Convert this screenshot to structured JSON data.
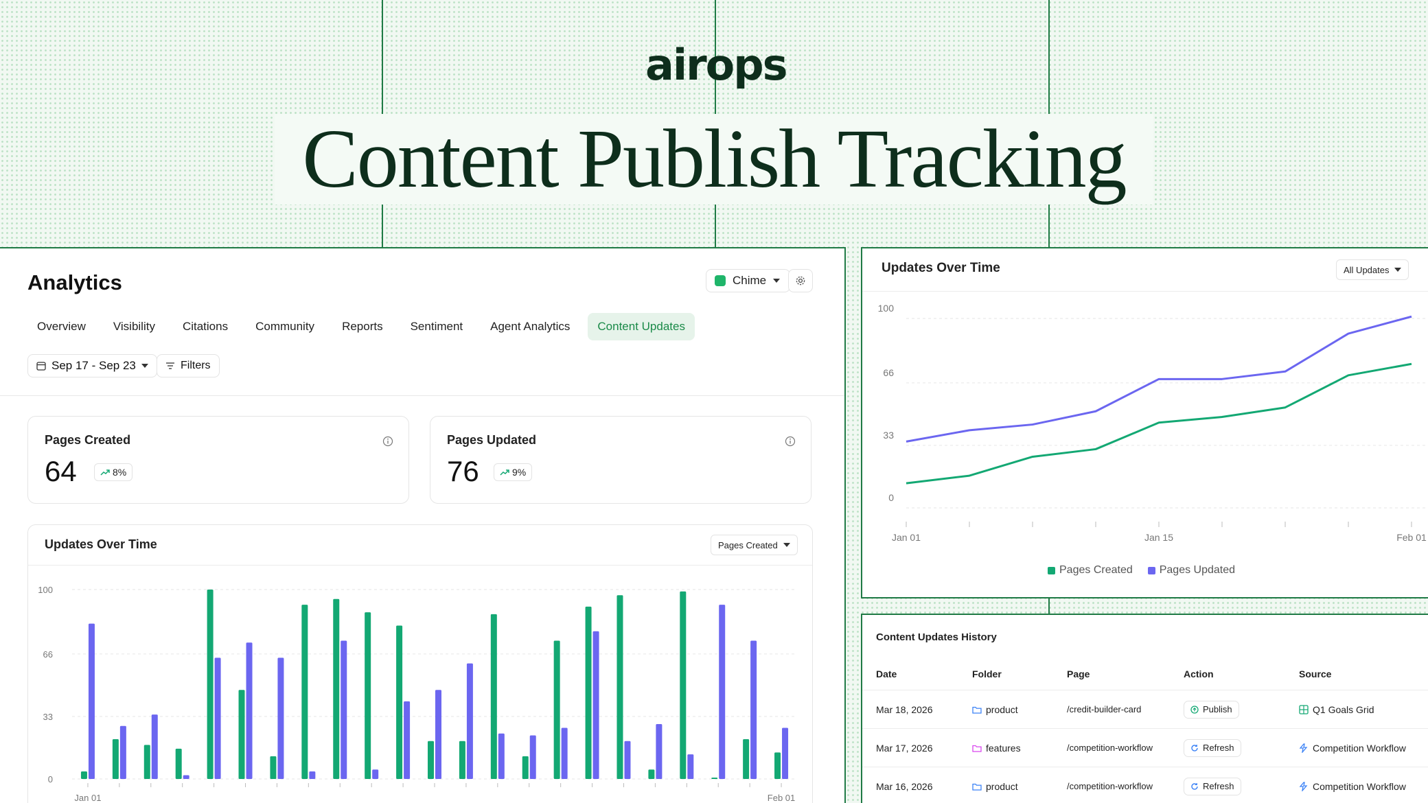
{
  "brand": {
    "logo_text": "airops",
    "hero_title": "Content Publish Tracking"
  },
  "analytics": {
    "title": "Analytics",
    "brand_dropdown": "Chime",
    "tabs": [
      "Overview",
      "Visibility",
      "Citations",
      "Community",
      "Reports",
      "Sentiment",
      "Agent Analytics",
      "Content Updates"
    ],
    "active_tab": "Content Updates",
    "date_range": "Sep 17 - Sep 23",
    "filters_label": "Filters"
  },
  "stats": [
    {
      "label": "Pages Created",
      "value": "64",
      "change": "8%"
    },
    {
      "label": "Pages Updated",
      "value": "76",
      "change": "9%"
    }
  ],
  "bar_chart_card": {
    "title": "Updates Over Time",
    "dropdown": "Pages Created"
  },
  "line_chart_card": {
    "title": "Updates Over Time",
    "dropdown": "All Updates"
  },
  "colors": {
    "created": "#13a873",
    "updated": "#6b66f0",
    "accent": "#1f7a45"
  },
  "chart_data": [
    {
      "type": "bar",
      "title": "Updates Over Time",
      "x_tick_labels": [
        "Jan 01",
        "Feb 01"
      ],
      "y_ticks": [
        0,
        33,
        66,
        100
      ],
      "ylim": [
        0,
        100
      ],
      "grid": true,
      "series": [
        {
          "name": "Pages Created",
          "values": [
            4,
            21,
            18,
            16,
            100,
            47,
            12,
            92,
            95,
            88,
            81,
            20,
            20,
            87,
            12,
            73,
            91,
            97,
            5,
            99,
            0,
            21,
            14
          ]
        },
        {
          "name": "Pages Updated",
          "values": [
            82,
            28,
            34,
            2,
            64,
            72,
            64,
            4,
            73,
            5,
            41,
            47,
            61,
            24,
            23,
            27,
            78,
            20,
            29,
            13,
            92,
            73,
            27
          ]
        }
      ]
    },
    {
      "type": "line",
      "title": "Updates Over Time",
      "x": [
        "Jan 01",
        "",
        "",
        "",
        "Jan 15",
        "",
        "",
        "",
        "Feb 01"
      ],
      "x_tick_labels": [
        "Jan 01",
        "Jan 15",
        "Feb 01"
      ],
      "y_ticks": [
        0,
        33,
        66,
        100
      ],
      "ylim": [
        0,
        100
      ],
      "grid": true,
      "legend": "bottom",
      "series": [
        {
          "name": "Pages Created",
          "values": [
            13,
            17,
            27,
            31,
            45,
            48,
            53,
            70,
            76
          ]
        },
        {
          "name": "Pages Updated",
          "values": [
            35,
            41,
            44,
            51,
            68,
            68,
            72,
            92,
            101
          ]
        }
      ]
    }
  ],
  "history": {
    "title": "Content Updates History",
    "columns": [
      "Date",
      "Folder",
      "Page",
      "Action",
      "Source"
    ],
    "rows": [
      {
        "date": "Mar 18, 2026",
        "folder": "product",
        "folder_color": "#3b82f6",
        "page": "/credit-builder-card",
        "action": "Publish",
        "action_icon": "publish-icon",
        "source": "Q1 Goals Grid",
        "source_icon": "grid-icon"
      },
      {
        "date": "Mar 17, 2026",
        "folder": "features",
        "folder_color": "#d946ef",
        "page": "/competition-workflow",
        "action": "Refresh",
        "action_icon": "refresh-icon",
        "source": "Competition Workflow",
        "source_icon": "workflow-icon"
      },
      {
        "date": "Mar 16, 2026",
        "folder": "product",
        "folder_color": "#3b82f6",
        "page": "/competition-workflow",
        "action": "Refresh",
        "action_icon": "refresh-icon",
        "source": "Competition Workflow",
        "source_icon": "workflow-icon"
      }
    ]
  }
}
